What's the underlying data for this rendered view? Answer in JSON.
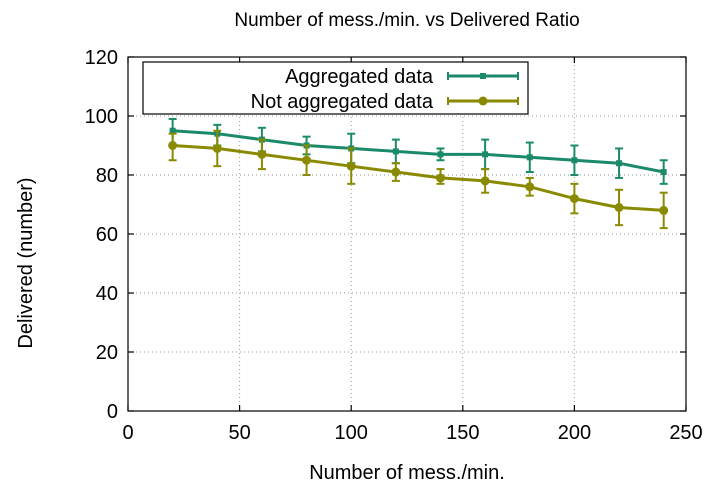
{
  "chart_data": {
    "type": "line",
    "title": "Number of mess./min. vs Delivered Ratio",
    "xlabel": "Number of mess./min.",
    "ylabel": "Delivered (number)",
    "xlim": [
      0,
      250
    ],
    "ylim": [
      0,
      120
    ],
    "xticks": [
      0,
      50,
      100,
      150,
      200,
      250
    ],
    "yticks": [
      0,
      20,
      40,
      60,
      80,
      100,
      120
    ],
    "grid": true,
    "legend_position": "top-left",
    "x": [
      20,
      40,
      60,
      80,
      100,
      120,
      140,
      160,
      180,
      200,
      220,
      240
    ],
    "series": [
      {
        "name": "Aggregated data",
        "color": "#1b8a6b",
        "marker": "square",
        "values": [
          95,
          94,
          92,
          90,
          89,
          88,
          87,
          87,
          86,
          85,
          84,
          81
        ],
        "err_low": [
          90,
          90,
          88,
          87,
          84,
          84,
          85,
          82,
          81,
          80,
          79,
          77
        ],
        "err_high": [
          99,
          97,
          96,
          93,
          94,
          92,
          89,
          92,
          91,
          90,
          89,
          85
        ]
      },
      {
        "name": "Not aggregated data",
        "color": "#8a8a00",
        "marker": "circle",
        "values": [
          90,
          89,
          87,
          85,
          83,
          81,
          79,
          78,
          76,
          72,
          69,
          68
        ],
        "err_low": [
          85,
          83,
          82,
          80,
          77,
          78,
          77,
          74,
          73,
          67,
          63,
          62
        ],
        "err_high": [
          94,
          95,
          92,
          90,
          89,
          84,
          82,
          82,
          79,
          77,
          75,
          74
        ]
      }
    ]
  }
}
